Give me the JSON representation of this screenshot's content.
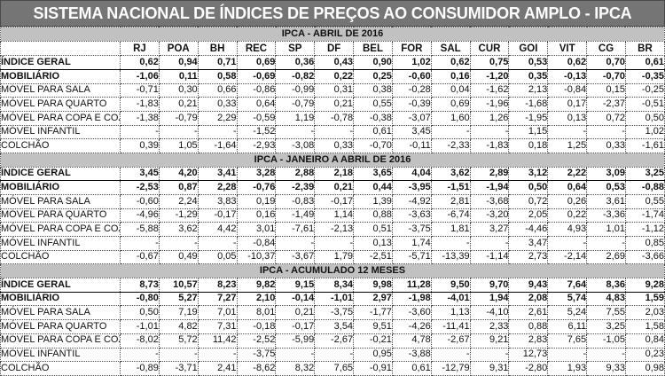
{
  "title": "SISTEMA NACIONAL DE ÍNDICES DE PREÇOS AO CONSUMIDOR AMPLO - IPCA",
  "columns": [
    "RJ",
    "POA",
    "BH",
    "REC",
    "SP",
    "DF",
    "BEL",
    "FOR",
    "SAL",
    "CUR",
    "GOI",
    "VIT",
    "CG",
    "BR"
  ],
  "colors": {
    "title_bg": "#757575",
    "title_text": "#ffffff",
    "section_bg": "#c1c1c1",
    "text": "#111111",
    "grid_border": "#4d4d4d"
  },
  "sections": [
    {
      "header": "IPCA - ABRIL DE 2016",
      "show_column_headers": true,
      "rows": [
        {
          "label": "ÍNDICE GERAL",
          "style": "index",
          "values": [
            "0,62",
            "0,94",
            "0,71",
            "0,69",
            "0,36",
            "0,43",
            "0,90",
            "1,02",
            "0,62",
            "0,75",
            "0,53",
            "0,62",
            "0,70",
            "0,61"
          ]
        },
        {
          "label": "MOBILIÁRIO",
          "style": "bold",
          "values": [
            "-1,06",
            "0,11",
            "0,58",
            "-0,69",
            "-0,82",
            "0,22",
            "0,25",
            "-0,60",
            "0,16",
            "-1,20",
            "0,35",
            "-0,13",
            "-0,70",
            "-0,35"
          ]
        },
        {
          "label": "MÓVEL PARA SALA",
          "style": "normal",
          "values": [
            "-0,71",
            "0,30",
            "0,66",
            "-0,86",
            "-0,99",
            "0,31",
            "0,38",
            "-0,28",
            "0,04",
            "-1,62",
            "2,13",
            "-0,84",
            "0,15",
            "-0,25"
          ]
        },
        {
          "label": "MÓVEL PARA QUARTO",
          "style": "normal",
          "values": [
            "-1,83",
            "0,21",
            "0,33",
            "0,64",
            "-0,79",
            "0,21",
            "0,55",
            "-0,39",
            "0,69",
            "-1,96",
            "-1,68",
            "0,17",
            "-2,37",
            "-0,51"
          ]
        },
        {
          "label": "MÓVEL PARA COPA E COZINHA",
          "style": "normal",
          "values": [
            "-1,38",
            "-0,79",
            "2,29",
            "-0,59",
            "1,19",
            "-0,78",
            "-0,38",
            "-3,07",
            "1,60",
            "1,26",
            "-1,95",
            "0,13",
            "0,72",
            "0,50"
          ]
        },
        {
          "label": "MÓVEL INFANTIL",
          "style": "normal",
          "values": [
            "-",
            "-",
            "-",
            "-1,52",
            "-",
            "-",
            "0,61",
            "3,45",
            "-",
            "-",
            "1,15",
            "-",
            "-",
            "1,02"
          ]
        },
        {
          "label": "COLCHÃO",
          "style": "normal",
          "values": [
            "0,39",
            "1,05",
            "-1,64",
            "-2,93",
            "-3,08",
            "0,33",
            "-0,70",
            "-0,11",
            "-2,33",
            "-1,83",
            "0,18",
            "1,25",
            "0,33",
            "-1,61"
          ]
        }
      ]
    },
    {
      "header": "IPCA - JANEIRO A ABRIL DE 2016",
      "show_column_headers": false,
      "rows": [
        {
          "label": "ÍNDICE GERAL",
          "style": "index",
          "values": [
            "3,45",
            "4,20",
            "3,41",
            "3,28",
            "2,88",
            "2,18",
            "3,65",
            "4,04",
            "3,62",
            "2,89",
            "3,12",
            "2,22",
            "3,09",
            "3,25"
          ]
        },
        {
          "label": "MOBILIÁRIO",
          "style": "bold",
          "values": [
            "-2,53",
            "0,87",
            "2,28",
            "-0,76",
            "-2,39",
            "0,21",
            "0,44",
            "-3,95",
            "-1,51",
            "-1,94",
            "0,50",
            "0,64",
            "0,53",
            "-0,88"
          ]
        },
        {
          "label": "MÓVEL PARA SALA",
          "style": "normal",
          "values": [
            "-0,60",
            "2,24",
            "3,83",
            "0,19",
            "-0,83",
            "-0,17",
            "1,39",
            "-4,92",
            "2,81",
            "-3,68",
            "0,72",
            "0,26",
            "3,61",
            "0,55"
          ]
        },
        {
          "label": "MÓVEL PARA QUARTO",
          "style": "normal",
          "values": [
            "-4,96",
            "-1,29",
            "-0,17",
            "0,16",
            "-1,49",
            "1,14",
            "0,88",
            "-3,63",
            "-6,74",
            "-3,20",
            "2,05",
            "0,22",
            "-3,36",
            "-1,74"
          ]
        },
        {
          "label": "MÓVEL PARA COPA E COZINHA",
          "style": "normal",
          "values": [
            "-5,88",
            "3,62",
            "4,42",
            "3,01",
            "-7,61",
            "-2,13",
            "0,51",
            "-3,75",
            "1,81",
            "3,27",
            "-4,46",
            "4,93",
            "1,01",
            "-1,12"
          ]
        },
        {
          "label": "MÓVEL INFANTIL",
          "style": "normal",
          "values": [
            "-",
            "-",
            "-",
            "-0,84",
            "-",
            "-",
            "0,13",
            "1,74",
            "-",
            "-",
            "3,47",
            "-",
            "-",
            "0,85"
          ]
        },
        {
          "label": "COLCHÃO",
          "style": "normal",
          "values": [
            "-0,67",
            "0,49",
            "0,05",
            "-10,37",
            "-3,67",
            "1,79",
            "-2,51",
            "-5,71",
            "-13,39",
            "-1,14",
            "2,73",
            "-2,14",
            "2,69",
            "-3,66"
          ]
        }
      ]
    },
    {
      "header": "IPCA - ACUMULADO 12 MESES",
      "show_column_headers": false,
      "rows": [
        {
          "label": "ÍNDICE GERAL",
          "style": "index",
          "values": [
            "8,73",
            "10,57",
            "8,23",
            "9,82",
            "9,15",
            "8,34",
            "9,98",
            "11,28",
            "9,50",
            "9,70",
            "9,43",
            "7,64",
            "8,36",
            "9,28"
          ]
        },
        {
          "label": "MOBILIÁRIO",
          "style": "bold",
          "values": [
            "-0,80",
            "5,27",
            "7,27",
            "2,10",
            "-0,14",
            "-1,01",
            "2,97",
            "-1,98",
            "-4,01",
            "1,94",
            "2,08",
            "5,74",
            "4,83",
            "1,59"
          ]
        },
        {
          "label": "MÓVEL PARA SALA",
          "style": "normal",
          "values": [
            "0,50",
            "7,19",
            "7,01",
            "8,01",
            "0,21",
            "-3,75",
            "-1,77",
            "-3,60",
            "1,13",
            "-4,10",
            "2,61",
            "5,24",
            "7,55",
            "2,03"
          ]
        },
        {
          "label": "MÓVEL PARA QUARTO",
          "style": "normal",
          "values": [
            "-1,01",
            "4,82",
            "7,31",
            "-0,18",
            "-0,17",
            "3,54",
            "9,51",
            "-4,26",
            "-11,41",
            "2,33",
            "0,88",
            "6,11",
            "3,25",
            "1,58"
          ]
        },
        {
          "label": "MÓVEL PARA COPA E COZINHA",
          "style": "normal",
          "values": [
            "-8,02",
            "5,72",
            "11,42",
            "-2,52",
            "-5,99",
            "-2,67",
            "-0,21",
            "4,78",
            "-2,67",
            "9,21",
            "2,83",
            "7,65",
            "-1,05",
            "0,84"
          ]
        },
        {
          "label": "MÓVEL INFANTIL",
          "style": "normal",
          "values": [
            "-",
            "-",
            "-",
            "-3,75",
            "-",
            "-",
            "0,95",
            "-3,88",
            "-",
            "-",
            "12,73",
            "-",
            "-",
            "0,23"
          ]
        },
        {
          "label": "COLCHÃO",
          "style": "normal",
          "values": [
            "-0,89",
            "-3,71",
            "2,41",
            "-8,62",
            "8,32",
            "7,65",
            "-0,91",
            "0,61",
            "-12,79",
            "9,31",
            "-2,80",
            "1,93",
            "9,33",
            "0,98"
          ]
        }
      ]
    }
  ]
}
